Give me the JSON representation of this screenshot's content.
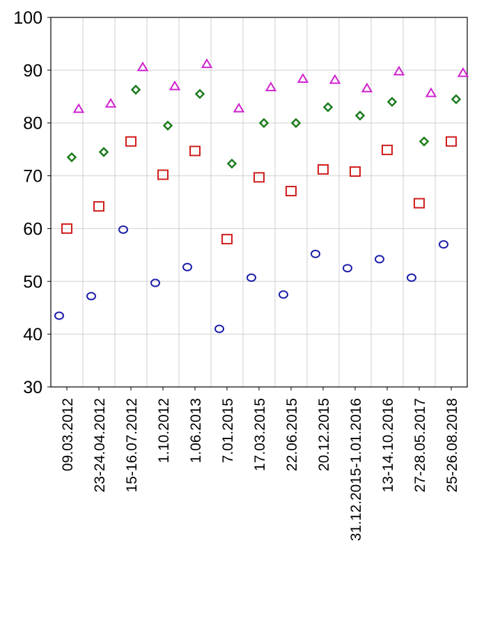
{
  "chart_data": {
    "type": "scatter",
    "categories": [
      "09.03.2012",
      "23-24.04.2012",
      "15-16.07.2012",
      "1.10.2012",
      "1.06.2013",
      "7.01.2015",
      "17.03.2015",
      "22.06.2015",
      "20.12.2015",
      "31.12.2015-1.01.2016",
      "13-14.10.2016",
      "27-28.05.2017",
      "25-26.08.2018"
    ],
    "series": [
      {
        "color": "#1c1ca8",
        "marker": "circle",
        "values": [
          43.5,
          47.2,
          59.8,
          49.7,
          52.7,
          41.0,
          50.7,
          47.5,
          55.2,
          52.5,
          54.2,
          50.7,
          57.0
        ]
      },
      {
        "color": "#d01c1c",
        "marker": "square",
        "values": [
          60.0,
          64.2,
          76.5,
          70.2,
          74.7,
          58.0,
          69.7,
          67.1,
          71.2,
          70.8,
          74.9,
          64.8,
          76.5
        ]
      },
      {
        "color": "#1c7a1c",
        "marker": "diamond",
        "values": [
          73.5,
          74.5,
          86.3,
          79.5,
          85.5,
          72.3,
          80.0,
          80.0,
          83.0,
          81.4,
          84.0,
          76.5,
          84.5
        ]
      },
      {
        "color": "#d020d0",
        "marker": "triangle",
        "values": [
          82.7,
          83.7,
          90.6,
          87.0,
          91.2,
          82.8,
          86.8,
          88.4,
          88.2,
          86.6,
          89.8,
          85.7,
          89.5
        ]
      }
    ],
    "ylim": [
      30,
      100
    ],
    "yticks": [
      30,
      40,
      50,
      60,
      70,
      80,
      90,
      100
    ],
    "grid": true
  }
}
